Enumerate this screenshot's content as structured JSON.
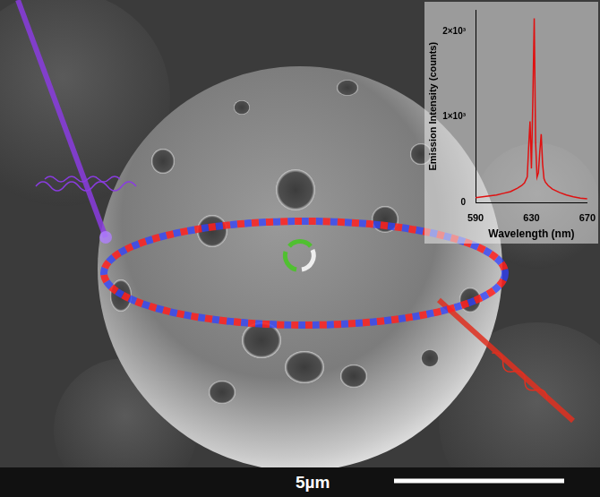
{
  "image": {
    "scale_bar": "5µm"
  },
  "chart_data": {
    "type": "line",
    "xlabel": "Wavelength (nm)",
    "ylabel": "Emission Intensity (counts)",
    "x": [
      590,
      595,
      600,
      605,
      610,
      615,
      620,
      623,
      625,
      627,
      628,
      629,
      630,
      631,
      632,
      633,
      634,
      635,
      636,
      637,
      638,
      639,
      640,
      642,
      645,
      650,
      655,
      660,
      665,
      670
    ],
    "values": [
      60,
      70,
      80,
      90,
      110,
      130,
      170,
      200,
      230,
      300,
      650,
      950,
      400,
      1200,
      2150,
      700,
      300,
      350,
      600,
      800,
      450,
      280,
      240,
      200,
      160,
      120,
      90,
      70,
      55,
      45
    ],
    "color": "#e01010",
    "xlim": [
      590,
      670
    ],
    "xticks": [
      590,
      630,
      670
    ],
    "ylim": [
      0,
      2250
    ],
    "yticks": [
      0,
      {
        "value": 1000,
        "label": "1×10³"
      },
      {
        "value": 2000,
        "label": "2×10³"
      }
    ],
    "grid": false
  }
}
